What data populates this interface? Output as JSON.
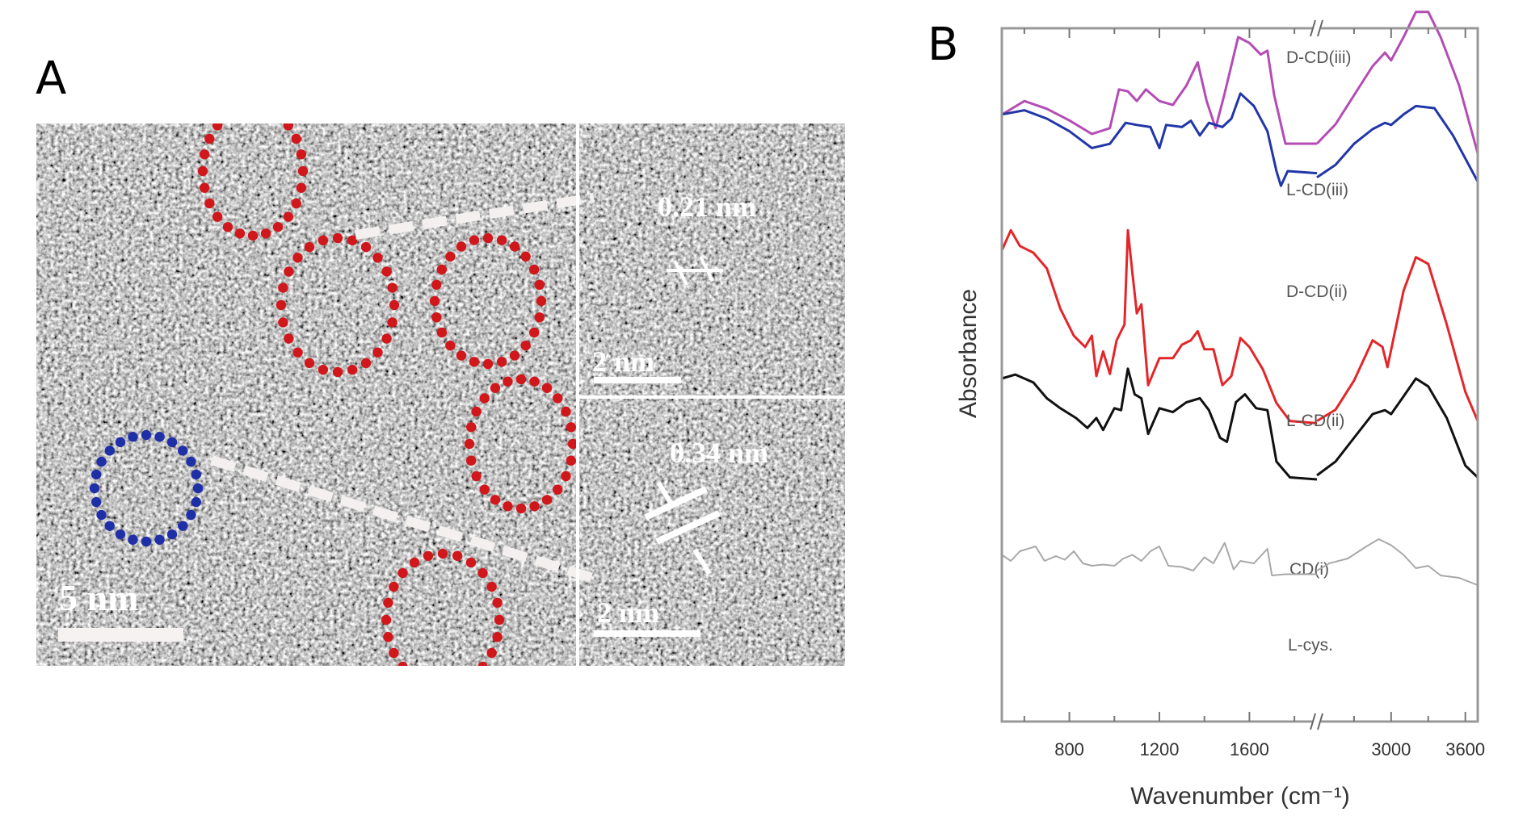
{
  "figure": {
    "panel_a": {
      "label": "A",
      "description": "HRTEM image of carbon dots with lattice fringes",
      "scale_bar_main": "5 nm",
      "inset_top": {
        "spacing": "0.21 nm",
        "scale_bar": "2 nm"
      },
      "inset_bottom": {
        "spacing": "0.34 nm",
        "scale_bar": "2 nm"
      },
      "highlight_colors": {
        "particles": "#d0171b",
        "selected": "#1f2fa8"
      },
      "particle_count": 5,
      "selected_count": 1
    },
    "panel_b": {
      "label": "B"
    }
  },
  "chart_data": {
    "type": "line",
    "title": "",
    "xlabel": "Wavenumber (cm⁻¹)",
    "ylabel": "Absorbance",
    "x_axis_break": [
      1900,
      2400
    ],
    "xlim_left_segment": [
      500,
      1900
    ],
    "xlim_right_segment": [
      2400,
      3700
    ],
    "xticks": [
      800,
      1200,
      1600,
      3000,
      3600
    ],
    "xtick_labels": [
      "800",
      "1200",
      "1600",
      "3000",
      "3600"
    ],
    "y_ticks_shown": false,
    "grid": false,
    "legend": "inline labels",
    "series": [
      {
        "name": "D-CD(iii)",
        "color": "#2a9a2a",
        "offset": 5,
        "points": [
          [
            500,
            0.52
          ],
          [
            600,
            0.56
          ],
          [
            700,
            0.52
          ],
          [
            800,
            0.49
          ],
          [
            900,
            0.44
          ],
          [
            980,
            0.48
          ],
          [
            1020,
            0.62
          ],
          [
            1060,
            0.64
          ],
          [
            1100,
            0.62
          ],
          [
            1140,
            0.71
          ],
          [
            1180,
            0.69
          ],
          [
            1240,
            0.68
          ],
          [
            1300,
            0.7
          ],
          [
            1360,
            0.75
          ],
          [
            1410,
            0.62
          ],
          [
            1450,
            0.55
          ],
          [
            1490,
            0.71
          ],
          [
            1540,
            0.9
          ],
          [
            1580,
            0.91
          ],
          [
            1620,
            0.88
          ],
          [
            1650,
            0.85
          ],
          [
            1680,
            0.88
          ],
          [
            1710,
            0.55
          ],
          [
            1760,
            0.38
          ],
          [
            1900,
            0.37
          ],
          [
            2400,
            0.37
          ],
          [
            2550,
            0.46
          ],
          [
            2700,
            0.6
          ],
          [
            2850,
            0.77
          ],
          [
            2950,
            0.83
          ],
          [
            3000,
            0.81
          ],
          [
            3100,
            0.93
          ],
          [
            3200,
            1.0
          ],
          [
            3300,
            1.0
          ],
          [
            3400,
            0.9
          ],
          [
            3550,
            0.7
          ],
          [
            3700,
            0.35
          ]
        ]
      },
      {
        "name": "L-CD(iii)",
        "color": "#b44cb4",
        "offset": 4,
        "points": [
          [
            500,
            0.45
          ],
          [
            600,
            0.52
          ],
          [
            700,
            0.48
          ],
          [
            800,
            0.42
          ],
          [
            900,
            0.35
          ],
          [
            980,
            0.38
          ],
          [
            1020,
            0.58
          ],
          [
            1060,
            0.57
          ],
          [
            1100,
            0.52
          ],
          [
            1140,
            0.58
          ],
          [
            1200,
            0.52
          ],
          [
            1260,
            0.5
          ],
          [
            1320,
            0.6
          ],
          [
            1370,
            0.72
          ],
          [
            1410,
            0.52
          ],
          [
            1450,
            0.38
          ],
          [
            1490,
            0.56
          ],
          [
            1550,
            0.85
          ],
          [
            1600,
            0.82
          ],
          [
            1650,
            0.76
          ],
          [
            1680,
            0.78
          ],
          [
            1710,
            0.55
          ],
          [
            1760,
            0.3
          ],
          [
            1900,
            0.3
          ],
          [
            2400,
            0.3
          ],
          [
            2550,
            0.4
          ],
          [
            2700,
            0.55
          ],
          [
            2850,
            0.7
          ],
          [
            2950,
            0.77
          ],
          [
            3000,
            0.73
          ],
          [
            3100,
            0.85
          ],
          [
            3200,
            0.98
          ],
          [
            3300,
            0.98
          ],
          [
            3400,
            0.85
          ],
          [
            3550,
            0.6
          ],
          [
            3700,
            0.25
          ]
        ]
      },
      {
        "name": "D-CD(ii)",
        "color": "#2236a8",
        "offset": 3,
        "points": [
          [
            500,
            0.82
          ],
          [
            600,
            0.84
          ],
          [
            700,
            0.8
          ],
          [
            800,
            0.74
          ],
          [
            900,
            0.66
          ],
          [
            980,
            0.68
          ],
          [
            1050,
            0.78
          ],
          [
            1100,
            0.77
          ],
          [
            1160,
            0.76
          ],
          [
            1200,
            0.66
          ],
          [
            1230,
            0.77
          ],
          [
            1300,
            0.76
          ],
          [
            1340,
            0.79
          ],
          [
            1380,
            0.72
          ],
          [
            1420,
            0.78
          ],
          [
            1480,
            0.76
          ],
          [
            1520,
            0.8
          ],
          [
            1560,
            0.92
          ],
          [
            1620,
            0.86
          ],
          [
            1680,
            0.74
          ],
          [
            1720,
            0.55
          ],
          [
            1740,
            0.48
          ],
          [
            1770,
            0.55
          ],
          [
            1900,
            0.54
          ],
          [
            2400,
            0.52
          ],
          [
            2550,
            0.58
          ],
          [
            2700,
            0.68
          ],
          [
            2850,
            0.75
          ],
          [
            2950,
            0.78
          ],
          [
            3000,
            0.77
          ],
          [
            3100,
            0.82
          ],
          [
            3200,
            0.86
          ],
          [
            3350,
            0.85
          ],
          [
            3500,
            0.72
          ],
          [
            3700,
            0.5
          ]
        ]
      },
      {
        "name": "L-CD(ii)",
        "color": "#e3262a",
        "offset": 2,
        "points": [
          [
            500,
            0.88
          ],
          [
            540,
            0.97
          ],
          [
            580,
            0.9
          ],
          [
            640,
            0.87
          ],
          [
            700,
            0.8
          ],
          [
            760,
            0.62
          ],
          [
            820,
            0.5
          ],
          [
            870,
            0.45
          ],
          [
            900,
            0.5
          ],
          [
            920,
            0.32
          ],
          [
            950,
            0.43
          ],
          [
            980,
            0.33
          ],
          [
            1010,
            0.48
          ],
          [
            1030,
            0.52
          ],
          [
            1045,
            0.55
          ],
          [
            1060,
            0.97
          ],
          [
            1080,
            0.78
          ],
          [
            1100,
            0.6
          ],
          [
            1120,
            0.64
          ],
          [
            1150,
            0.28
          ],
          [
            1200,
            0.4
          ],
          [
            1260,
            0.4
          ],
          [
            1300,
            0.46
          ],
          [
            1340,
            0.48
          ],
          [
            1370,
            0.52
          ],
          [
            1400,
            0.44
          ],
          [
            1440,
            0.44
          ],
          [
            1480,
            0.28
          ],
          [
            1520,
            0.32
          ],
          [
            1560,
            0.49
          ],
          [
            1600,
            0.45
          ],
          [
            1660,
            0.35
          ],
          [
            1720,
            0.2
          ],
          [
            1780,
            0.12
          ],
          [
            1900,
            0.11
          ],
          [
            2400,
            0.12
          ],
          [
            2550,
            0.17
          ],
          [
            2700,
            0.3
          ],
          [
            2850,
            0.48
          ],
          [
            2930,
            0.45
          ],
          [
            2970,
            0.36
          ],
          [
            3100,
            0.7
          ],
          [
            3200,
            0.85
          ],
          [
            3300,
            0.82
          ],
          [
            3450,
            0.55
          ],
          [
            3600,
            0.25
          ],
          [
            3700,
            0.12
          ]
        ]
      },
      {
        "name": "CD(i)",
        "color": "#111111",
        "offset": 1,
        "points": [
          [
            500,
            0.8
          ],
          [
            560,
            0.82
          ],
          [
            640,
            0.78
          ],
          [
            700,
            0.7
          ],
          [
            760,
            0.65
          ],
          [
            830,
            0.6
          ],
          [
            880,
            0.55
          ],
          [
            920,
            0.6
          ],
          [
            950,
            0.54
          ],
          [
            1000,
            0.65
          ],
          [
            1030,
            0.64
          ],
          [
            1060,
            0.85
          ],
          [
            1090,
            0.72
          ],
          [
            1120,
            0.7
          ],
          [
            1150,
            0.52
          ],
          [
            1200,
            0.65
          ],
          [
            1260,
            0.63
          ],
          [
            1320,
            0.68
          ],
          [
            1380,
            0.7
          ],
          [
            1420,
            0.64
          ],
          [
            1470,
            0.5
          ],
          [
            1500,
            0.48
          ],
          [
            1540,
            0.68
          ],
          [
            1580,
            0.72
          ],
          [
            1630,
            0.65
          ],
          [
            1680,
            0.64
          ],
          [
            1720,
            0.38
          ],
          [
            1780,
            0.3
          ],
          [
            1900,
            0.29
          ],
          [
            2400,
            0.31
          ],
          [
            2550,
            0.38
          ],
          [
            2700,
            0.5
          ],
          [
            2850,
            0.62
          ],
          [
            2950,
            0.64
          ],
          [
            3000,
            0.62
          ],
          [
            3100,
            0.71
          ],
          [
            3200,
            0.8
          ],
          [
            3300,
            0.76
          ],
          [
            3450,
            0.6
          ],
          [
            3600,
            0.36
          ],
          [
            3700,
            0.3
          ]
        ]
      },
      {
        "name": "L-cys.",
        "color": "#a8a8a8",
        "offset": 0,
        "points": [
          [
            500,
            0.55
          ],
          [
            540,
            0.5
          ],
          [
            580,
            0.58
          ],
          [
            650,
            0.62
          ],
          [
            690,
            0.5
          ],
          [
            740,
            0.54
          ],
          [
            780,
            0.51
          ],
          [
            820,
            0.58
          ],
          [
            860,
            0.48
          ],
          [
            900,
            0.46
          ],
          [
            950,
            0.47
          ],
          [
            1000,
            0.46
          ],
          [
            1040,
            0.52
          ],
          [
            1080,
            0.55
          ],
          [
            1120,
            0.5
          ],
          [
            1160,
            0.58
          ],
          [
            1200,
            0.62
          ],
          [
            1240,
            0.46
          ],
          [
            1300,
            0.45
          ],
          [
            1350,
            0.42
          ],
          [
            1400,
            0.53
          ],
          [
            1440,
            0.48
          ],
          [
            1490,
            0.65
          ],
          [
            1530,
            0.43
          ],
          [
            1560,
            0.5
          ],
          [
            1620,
            0.48
          ],
          [
            1680,
            0.6
          ],
          [
            1700,
            0.38
          ],
          [
            1760,
            0.39
          ],
          [
            1900,
            0.39
          ],
          [
            2400,
            0.42
          ],
          [
            2500,
            0.48
          ],
          [
            2650,
            0.52
          ],
          [
            2800,
            0.62
          ],
          [
            2900,
            0.68
          ],
          [
            3000,
            0.63
          ],
          [
            3100,
            0.55
          ],
          [
            3200,
            0.44
          ],
          [
            3300,
            0.46
          ],
          [
            3400,
            0.38
          ],
          [
            3550,
            0.36
          ],
          [
            3700,
            0.3
          ]
        ]
      }
    ]
  }
}
